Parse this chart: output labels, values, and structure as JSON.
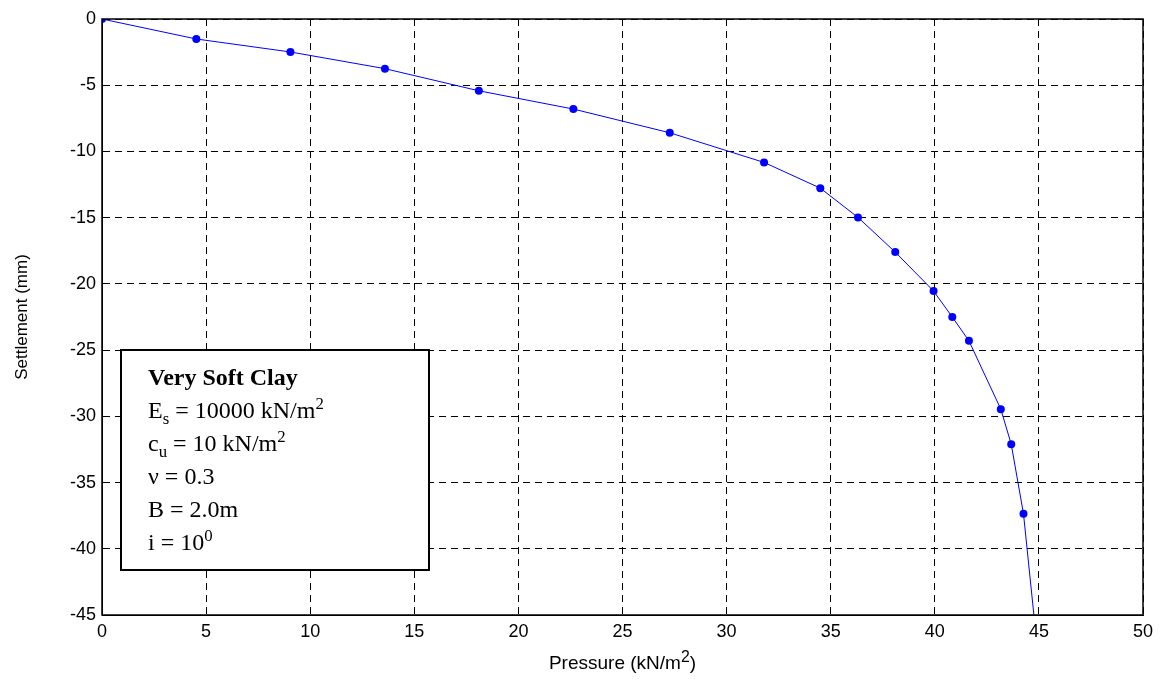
{
  "chart_data": {
    "type": "line",
    "xlabel": "Pressure (kN/m$^{2}$)",
    "ylabel": "Settlement (mm)",
    "xlim": [
      0,
      50
    ],
    "xticks": [
      0,
      5,
      10,
      15,
      20,
      25,
      30,
      35,
      40,
      45,
      50
    ],
    "ylim": [
      -45,
      0
    ],
    "yticks": [
      0,
      -5,
      -10,
      -15,
      -20,
      -25,
      -30,
      -35,
      -40,
      -45
    ],
    "grid": true,
    "legend": false,
    "series": [
      {
        "type": "line",
        "marker": "none",
        "color": "#0000ff",
        "x": [
          0,
          4.53,
          9.05,
          13.59,
          18.1,
          22.64,
          27.27,
          31.8,
          34.5,
          36.31,
          38.1,
          39.94,
          40.84,
          41.64,
          43.17,
          43.67,
          44.26,
          44.76
        ],
        "values": [
          0,
          -1.51,
          -2.49,
          -3.75,
          -5.42,
          -6.8,
          -8.59,
          -10.83,
          -12.77,
          -14.98,
          -17.6,
          -20.54,
          -22.5,
          -24.3,
          -29.46,
          -32.1,
          -37.36,
          -45
        ]
      },
      {
        "type": "scatter",
        "marker": "circle",
        "color": "#0000ff",
        "x": [
          0,
          4.53,
          9.05,
          13.59,
          18.1,
          22.64,
          27.27,
          31.8,
          34.5,
          36.31,
          38.1,
          39.94,
          40.84,
          41.64,
          43.17,
          43.67,
          44.26
        ],
        "values": [
          0,
          -1.51,
          -2.49,
          -3.75,
          -5.42,
          -6.8,
          -8.59,
          -10.83,
          -12.77,
          -14.98,
          -17.6,
          -20.54,
          -22.5,
          -24.3,
          -29.46,
          -32.1,
          -37.36
        ]
      }
    ],
    "annotations": [
      "Very Soft Clay",
      "E$_{s}$ = 10000 kN/m$^{2}$",
      "c$_{u}$ = 10  kN/m$^{2}$",
      "ν = 0.3",
      "B = 2.0m",
      "i = 10$^{0}$"
    ]
  }
}
